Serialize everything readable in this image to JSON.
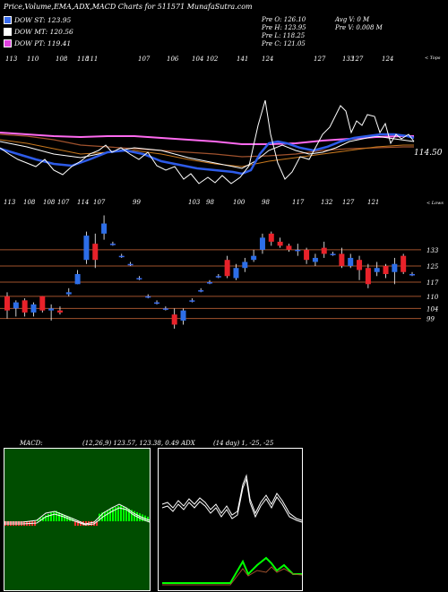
{
  "header": {
    "title": "Price,Volume,EMA,ADX,MACD Charts for 511571 MunafaSutra.com"
  },
  "dow": [
    {
      "label": "DOW ST: 123.95",
      "color": "#3a6df0"
    },
    {
      "label": "DOW MT: 120.56",
      "color": "#ffffff"
    },
    {
      "label": "DOW PT: 119.41",
      "color": "#e040e0"
    }
  ],
  "info": {
    "col1": [
      "Pre  O: 126.10",
      "Pre  H: 123.95",
      "Pre  L: 118.25",
      "Pre  C: 121.05"
    ],
    "col2": [
      "Avg V: 0  M",
      "Pre   V: 0.008 M"
    ]
  },
  "top_chart": {
    "right_label": "< Tops",
    "price_label": "114.50",
    "tops": [
      "113",
      "110",
      "108",
      "118",
      "111",
      "107",
      "106",
      "104",
      "102",
      "141",
      "124",
      "127",
      "133",
      "127",
      "124"
    ],
    "bottoms": [
      "113",
      "108",
      "108",
      "107",
      "114",
      "107",
      "99",
      "103",
      "98",
      "100",
      "98",
      "117",
      "132",
      "127",
      "121"
    ],
    "bottoms_label": "< Lows"
  },
  "candle_chart": {
    "levels": [
      "133",
      "125",
      "117",
      "110",
      "104",
      "99"
    ]
  },
  "macd": {
    "label": "MACD:",
    "params": "(12,26,9) 123.57, 123.38, 0.49 ADX",
    "adx_params": "(14 day) 1, -25, -25"
  },
  "chart_data": {
    "type": "candlestick",
    "title": "Price,Volume,EMA,ADX,MACD Charts for 511571 MunafaSutra.com",
    "levels": [
      133,
      125,
      117,
      110,
      104,
      99
    ],
    "candles": [
      {
        "o": 110,
        "c": 103,
        "h": 112,
        "l": 99
      },
      {
        "o": 104,
        "c": 107,
        "h": 108,
        "l": 100
      },
      {
        "o": 108,
        "c": 102,
        "h": 109,
        "l": 100
      },
      {
        "o": 102,
        "c": 106,
        "h": 107,
        "l": 100
      },
      {
        "o": 110,
        "c": 103,
        "h": 110,
        "l": 102
      },
      {
        "o": 103,
        "c": 104,
        "h": 106,
        "l": 98
      },
      {
        "o": 103,
        "c": 102,
        "h": 105,
        "l": 101
      },
      {
        "o": 111,
        "c": 112,
        "h": 114,
        "l": 110
      },
      {
        "o": 116,
        "c": 121,
        "h": 123,
        "l": 116
      },
      {
        "o": 128,
        "c": 140,
        "h": 142,
        "l": 126
      },
      {
        "o": 136,
        "c": 128,
        "h": 141,
        "l": 124
      },
      {
        "o": 141,
        "c": 146,
        "h": 150,
        "l": 138
      },
      {
        "o": 136,
        "c": 136,
        "h": 137,
        "l": 135
      },
      {
        "o": 130,
        "c": 130,
        "h": 131,
        "l": 129
      },
      {
        "o": 126,
        "c": 126,
        "h": 127,
        "l": 125
      },
      {
        "o": 119,
        "c": 119,
        "h": 120,
        "l": 118
      },
      {
        "o": 110,
        "c": 110,
        "h": 111,
        "l": 109
      },
      {
        "o": 107,
        "c": 107,
        "h": 108,
        "l": 106
      },
      {
        "o": 104,
        "c": 104,
        "h": 105,
        "l": 103
      },
      {
        "o": 101,
        "c": 96,
        "h": 104,
        "l": 94
      },
      {
        "o": 98,
        "c": 103,
        "h": 104,
        "l": 96
      },
      {
        "o": 108,
        "c": 108,
        "h": 109,
        "l": 107
      },
      {
        "o": 113,
        "c": 113,
        "h": 114,
        "l": 112
      },
      {
        "o": 117,
        "c": 117,
        "h": 118,
        "l": 116
      },
      {
        "o": 120,
        "c": 120,
        "h": 121,
        "l": 119
      },
      {
        "o": 128,
        "c": 120,
        "h": 130,
        "l": 119
      },
      {
        "o": 119,
        "c": 124,
        "h": 126,
        "l": 118
      },
      {
        "o": 124,
        "c": 127,
        "h": 129,
        "l": 122
      },
      {
        "o": 128,
        "c": 130,
        "h": 133,
        "l": 127
      },
      {
        "o": 133,
        "c": 139,
        "h": 141,
        "l": 131
      },
      {
        "o": 141,
        "c": 137,
        "h": 142,
        "l": 135
      },
      {
        "o": 137,
        "c": 135,
        "h": 139,
        "l": 134
      },
      {
        "o": 135,
        "c": 133,
        "h": 136,
        "l": 132
      },
      {
        "o": 133,
        "c": 133,
        "h": 136,
        "l": 130
      },
      {
        "o": 133,
        "c": 128,
        "h": 134,
        "l": 126
      },
      {
        "o": 127,
        "c": 129,
        "h": 131,
        "l": 125
      },
      {
        "o": 134,
        "c": 131,
        "h": 137,
        "l": 129
      },
      {
        "o": 131,
        "c": 131,
        "h": 132,
        "l": 130
      },
      {
        "o": 131,
        "c": 125,
        "h": 134,
        "l": 124
      },
      {
        "o": 125,
        "c": 129,
        "h": 131,
        "l": 124
      },
      {
        "o": 128,
        "c": 123,
        "h": 130,
        "l": 118
      },
      {
        "o": 124,
        "c": 116,
        "h": 126,
        "l": 114
      },
      {
        "o": 122,
        "c": 124,
        "h": 127,
        "l": 120
      },
      {
        "o": 125,
        "c": 121,
        "h": 126,
        "l": 119
      },
      {
        "o": 122,
        "c": 126,
        "h": 129,
        "l": 116
      },
      {
        "o": 130,
        "c": 122,
        "h": 131,
        "l": 121
      },
      {
        "o": 121,
        "c": 121,
        "h": 122,
        "l": 120
      }
    ]
  }
}
